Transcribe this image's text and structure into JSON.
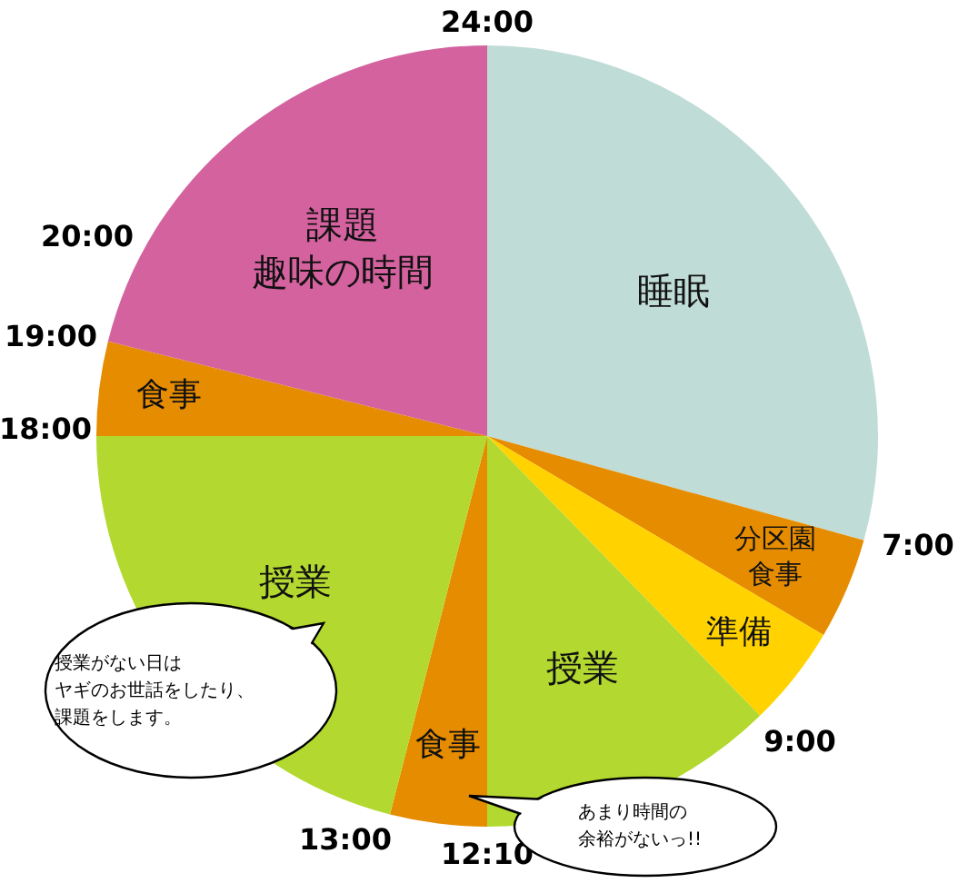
{
  "chart_data": {
    "type": "pie",
    "categories": [
      "睡眠",
      "分区園食事",
      "準備",
      "授業",
      "食事",
      "授業",
      "食事",
      "課題趣味の時間"
    ],
    "values": [
      29.3,
      4.2,
      4.2,
      12.3,
      4.0,
      21.0,
      3.9,
      21.1
    ],
    "colors": [
      "#c0dcd6",
      "#e68c00",
      "#ffd200",
      "#b3d930",
      "#e68c00",
      "#b3d930",
      "#e68c00",
      "#d4629f"
    ],
    "legend": false,
    "annotations": [
      "24:00",
      "7:00",
      "9:00",
      "12:10",
      "13:00",
      "18:00",
      "19:00",
      "20:00",
      "授業がない日はヤギのお世話をしたり、課題をします。",
      "あまり時間の余裕がないっ!!"
    ]
  }
}
